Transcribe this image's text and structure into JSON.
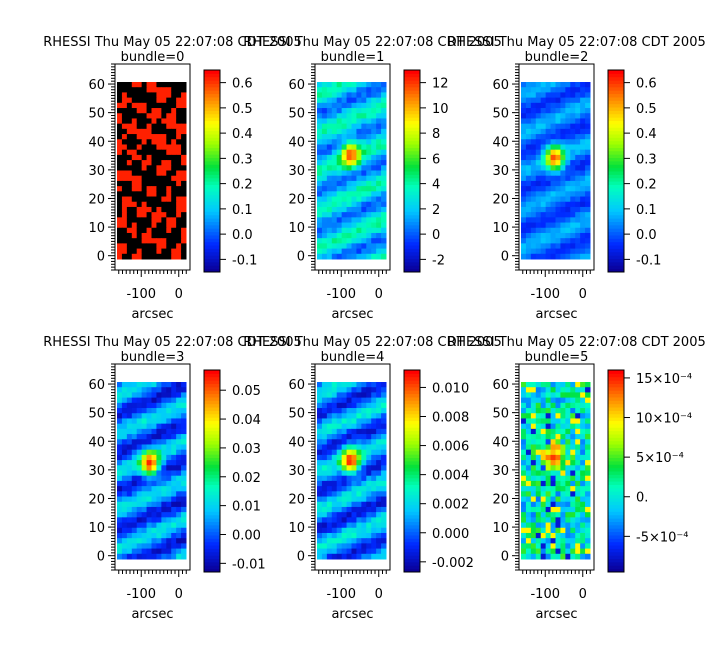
{
  "figure": {
    "background": "#ffffff"
  },
  "chart_data": [
    {
      "type": "heatmap",
      "title": "RHESSI Thu May 05 22:07:08 CDT 2005",
      "subtitle": "bundle=0",
      "xlabel": "arcsec",
      "x_ticks": [
        "-100",
        "0"
      ],
      "y_ticks": [
        "0",
        "10",
        "20",
        "30",
        "40",
        "50",
        "60"
      ],
      "xlim": [
        -170,
        30
      ],
      "ylim": [
        -5,
        67
      ],
      "colorbar_ticks": [
        "-0.1",
        "0.0",
        "0.1",
        "0.2",
        "0.3",
        "0.4",
        "0.5",
        "0.6"
      ],
      "colorbar_range": [
        -0.15,
        0.65
      ],
      "colormap": "rainbow",
      "appearance": "binary_mask",
      "image_colors": [
        "#000000",
        "#ff2000"
      ]
    },
    {
      "type": "heatmap",
      "title": "RHESSI Thu May 05 22:07:08 CDT 2005",
      "subtitle": "bundle=1",
      "xlabel": "arcsec",
      "x_ticks": [
        "-100",
        "0"
      ],
      "y_ticks": [
        "0",
        "10",
        "20",
        "30",
        "40",
        "50",
        "60"
      ],
      "xlim": [
        -170,
        30
      ],
      "ylim": [
        -5,
        67
      ],
      "colorbar_ticks": [
        "-2",
        "0",
        "2",
        "4",
        "6",
        "8",
        "10",
        "12"
      ],
      "colorbar_range": [
        -3,
        13
      ],
      "colormap": "rainbow",
      "appearance": "single_source",
      "source": {
        "x": -70,
        "y": 37,
        "peak": 12
      },
      "background_level": [
        0,
        4
      ]
    },
    {
      "type": "heatmap",
      "title": "RHESSI Thu May 05 22:07:08 CDT 2005",
      "subtitle": "bundle=2",
      "xlabel": "arcsec",
      "x_ticks": [
        "-100",
        "0"
      ],
      "y_ticks": [
        "0",
        "10",
        "20",
        "30",
        "40",
        "50",
        "60"
      ],
      "xlim": [
        -170,
        30
      ],
      "ylim": [
        -5,
        67
      ],
      "colorbar_ticks": [
        "-0.1",
        "0.0",
        "0.1",
        "0.2",
        "0.3",
        "0.4",
        "0.5",
        "0.6"
      ],
      "colorbar_range": [
        -0.15,
        0.65
      ],
      "colormap": "rainbow",
      "appearance": "single_source",
      "source": {
        "x": -70,
        "y": 36,
        "peak": 0.6
      },
      "background_level": [
        -0.05,
        0.08
      ]
    },
    {
      "type": "heatmap",
      "title": "RHESSI Thu May 05 22:07:08 CDT 2005",
      "subtitle": "bundle=3",
      "xlabel": "arcsec",
      "x_ticks": [
        "-100",
        "0"
      ],
      "y_ticks": [
        "0",
        "10",
        "20",
        "30",
        "40",
        "50",
        "60"
      ],
      "xlim": [
        -170,
        30
      ],
      "ylim": [
        -5,
        67
      ],
      "colorbar_ticks": [
        "-0.01",
        "0.00",
        "0.01",
        "0.02",
        "0.03",
        "0.04",
        "0.05"
      ],
      "colorbar_range": [
        -0.013,
        0.057
      ],
      "colormap": "rainbow",
      "appearance": "single_source",
      "source": {
        "x": -72,
        "y": 34,
        "peak": 0.055
      },
      "background_level": [
        -0.008,
        0.012
      ]
    },
    {
      "type": "heatmap",
      "title": "RHESSI Thu May 05 22:07:08 CDT 2005",
      "subtitle": "bundle=4",
      "xlabel": "arcsec",
      "x_ticks": [
        "-100",
        "0"
      ],
      "y_ticks": [
        "0",
        "10",
        "20",
        "30",
        "40",
        "50",
        "60"
      ],
      "xlim": [
        -170,
        30
      ],
      "ylim": [
        -5,
        67
      ],
      "colorbar_ticks": [
        "-0.002",
        "0.000",
        "0.002",
        "0.004",
        "0.006",
        "0.008",
        "0.010"
      ],
      "colorbar_range": [
        -0.0027,
        0.0112
      ],
      "colormap": "rainbow",
      "appearance": "single_source",
      "source": {
        "x": -70,
        "y": 35,
        "peak": 0.011
      },
      "background_level": [
        -0.0015,
        0.0025
      ]
    },
    {
      "type": "heatmap",
      "title": "RHESSI Thu May 05 22:07:08 CDT 2005",
      "subtitle": "bundle=5",
      "xlabel": "arcsec",
      "x_ticks": [
        "-100",
        "0"
      ],
      "y_ticks": [
        "0",
        "10",
        "20",
        "30",
        "40",
        "50",
        "60"
      ],
      "xlim": [
        -170,
        30
      ],
      "ylim": [
        -5,
        67
      ],
      "colorbar_ticks": [
        "15×10⁻⁴",
        "10×10⁻⁴",
        "5×10⁻⁴",
        "0.",
        "-5×10⁻⁴"
      ],
      "colorbar_tick_values": [
        0.0015,
        0.001,
        0.0005,
        0,
        -0.0005
      ],
      "colorbar_range": [
        -0.00095,
        0.0016
      ],
      "colormap": "rainbow",
      "appearance": "speckle",
      "source": {
        "x": -70,
        "y": 36,
        "peak": 0.0015
      },
      "background_level": [
        -0.0002,
        0.0003
      ]
    }
  ]
}
